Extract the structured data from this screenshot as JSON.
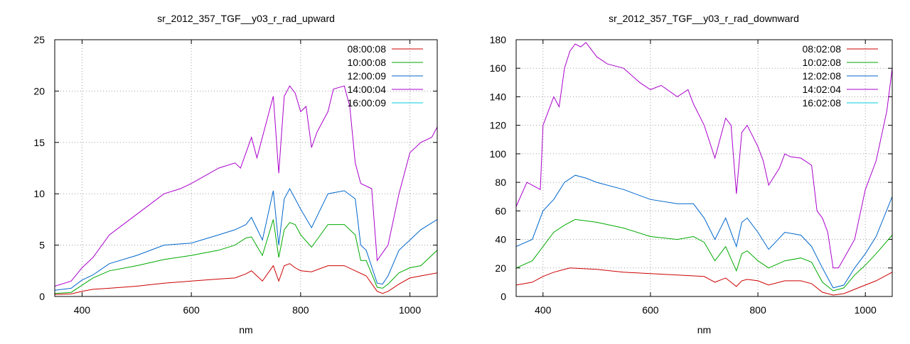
{
  "chart_data": [
    {
      "type": "line",
      "title": "sr_2012_357_TGF__y03_r_rad_upward",
      "xlabel": "nm",
      "ylabel": "",
      "xlim": [
        350,
        1050
      ],
      "ylim": [
        0,
        25
      ],
      "xticks": [
        400,
        600,
        800,
        1000
      ],
      "yticks": [
        0,
        5,
        10,
        15,
        20,
        25
      ],
      "grid": true,
      "legend_position": "top-right",
      "series": [
        {
          "name": "08:00:08",
          "color": "#cc0000",
          "x": [
            350,
            380,
            400,
            420,
            450,
            500,
            550,
            600,
            650,
            680,
            700,
            710,
            730,
            750,
            760,
            770,
            780,
            790,
            800,
            820,
            850,
            880,
            900,
            920,
            940,
            950,
            960,
            980,
            1000,
            1020,
            1050
          ],
          "y": [
            0.2,
            0.25,
            0.5,
            0.7,
            0.8,
            1.0,
            1.3,
            1.5,
            1.7,
            1.8,
            2.2,
            2.5,
            1.5,
            3.0,
            1.5,
            3.0,
            3.2,
            2.8,
            2.5,
            2.4,
            3.0,
            3.0,
            2.5,
            2.0,
            0.5,
            0.3,
            0.5,
            1.2,
            1.8,
            2.0,
            2.3
          ]
        },
        {
          "name": "10:00:08",
          "color": "#00aa00",
          "x": [
            350,
            380,
            400,
            420,
            450,
            500,
            550,
            600,
            650,
            680,
            700,
            710,
            730,
            750,
            760,
            770,
            780,
            790,
            800,
            820,
            850,
            880,
            900,
            910,
            920,
            940,
            950,
            960,
            980,
            1000,
            1020,
            1050
          ],
          "y": [
            0.3,
            0.4,
            1.1,
            1.8,
            2.5,
            3.0,
            3.6,
            4.0,
            4.5,
            5.0,
            5.7,
            5.8,
            4.0,
            7.5,
            3.8,
            6.5,
            7.2,
            7.0,
            6.0,
            4.8,
            7.0,
            7.0,
            6.0,
            3.5,
            3.5,
            0.9,
            0.8,
            1.2,
            2.3,
            2.8,
            3.0,
            4.5
          ]
        },
        {
          "name": "12:00:09",
          "color": "#0066cc",
          "x": [
            350,
            380,
            400,
            420,
            450,
            500,
            550,
            600,
            650,
            680,
            700,
            710,
            730,
            750,
            760,
            770,
            780,
            790,
            800,
            820,
            850,
            880,
            900,
            910,
            920,
            940,
            950,
            960,
            980,
            1000,
            1020,
            1050
          ],
          "y": [
            0.6,
            0.8,
            1.6,
            2.1,
            3.2,
            4.0,
            5.0,
            5.2,
            6.0,
            6.5,
            7.0,
            7.7,
            5.5,
            10.3,
            5.0,
            9.5,
            10.5,
            9.5,
            8.5,
            6.7,
            10.0,
            10.3,
            9.5,
            5.0,
            4.5,
            1.3,
            1.2,
            2.0,
            4.5,
            5.5,
            6.5,
            7.5
          ]
        },
        {
          "name": "14:00:04",
          "color": "#aa00cc",
          "x": [
            350,
            380,
            400,
            420,
            450,
            500,
            550,
            580,
            600,
            650,
            680,
            690,
            700,
            710,
            720,
            740,
            750,
            760,
            770,
            780,
            790,
            800,
            810,
            820,
            830,
            850,
            860,
            880,
            890,
            900,
            910,
            930,
            940,
            960,
            980,
            1000,
            1020,
            1040,
            1050
          ],
          "y": [
            1.0,
            1.5,
            2.8,
            3.8,
            6.0,
            8.0,
            10.0,
            10.5,
            11.0,
            12.5,
            13.0,
            12.5,
            14.0,
            15.5,
            13.5,
            17.5,
            19.5,
            12.0,
            19.5,
            20.5,
            19.8,
            18.0,
            18.5,
            14.5,
            16.0,
            18.0,
            20.2,
            20.5,
            18.5,
            13.0,
            11.0,
            10.5,
            3.5,
            5.0,
            10.0,
            14.0,
            15.0,
            15.5,
            16.5
          ]
        },
        {
          "name": "16:00:09",
          "color": "#00ccdd",
          "x": [
            350,
            1050
          ],
          "y": [
            0.0,
            0.0
          ]
        }
      ]
    },
    {
      "type": "line",
      "title": "sr_2012_357_TGF__y03_r_rad_downward",
      "xlabel": "nm",
      "ylabel": "",
      "xlim": [
        350,
        1050
      ],
      "ylim": [
        0,
        180
      ],
      "xticks": [
        400,
        600,
        800,
        1000
      ],
      "yticks": [
        0,
        20,
        40,
        60,
        80,
        100,
        120,
        140,
        160,
        180
      ],
      "grid": true,
      "legend_position": "top-right",
      "series": [
        {
          "name": "08:02:08",
          "color": "#cc0000",
          "x": [
            350,
            380,
            400,
            420,
            450,
            500,
            550,
            600,
            650,
            700,
            720,
            740,
            760,
            770,
            780,
            800,
            820,
            850,
            880,
            900,
            920,
            940,
            960,
            980,
            1000,
            1020,
            1050
          ],
          "y": [
            8,
            10,
            14,
            17,
            20,
            19,
            17,
            16,
            15,
            14,
            10,
            13,
            7,
            11,
            12,
            11,
            8,
            11,
            11,
            9,
            3,
            1,
            2,
            5,
            8,
            11,
            17
          ]
        },
        {
          "name": "10:02:08",
          "color": "#00aa00",
          "x": [
            350,
            380,
            400,
            420,
            440,
            460,
            500,
            550,
            600,
            650,
            680,
            700,
            720,
            740,
            760,
            770,
            780,
            800,
            820,
            850,
            880,
            900,
            920,
            940,
            960,
            980,
            1000,
            1020,
            1050
          ],
          "y": [
            20,
            25,
            35,
            45,
            50,
            54,
            52,
            48,
            42,
            40,
            42,
            38,
            25,
            35,
            18,
            30,
            32,
            25,
            20,
            25,
            27,
            24,
            10,
            4,
            6,
            15,
            22,
            30,
            43
          ]
        },
        {
          "name": "12:02:08",
          "color": "#0066cc",
          "x": [
            350,
            380,
            400,
            420,
            440,
            460,
            480,
            500,
            550,
            600,
            650,
            680,
            700,
            720,
            740,
            760,
            770,
            780,
            800,
            820,
            850,
            880,
            900,
            920,
            940,
            960,
            980,
            1000,
            1020,
            1050
          ],
          "y": [
            35,
            40,
            60,
            68,
            80,
            85,
            83,
            80,
            75,
            68,
            65,
            65,
            55,
            40,
            55,
            35,
            52,
            55,
            45,
            33,
            45,
            43,
            35,
            20,
            6,
            8,
            20,
            30,
            42,
            70
          ]
        },
        {
          "name": "14:02:04",
          "color": "#aa00cc",
          "x": [
            350,
            370,
            380,
            395,
            400,
            420,
            430,
            440,
            450,
            460,
            470,
            480,
            500,
            520,
            550,
            580,
            600,
            620,
            650,
            670,
            680,
            700,
            720,
            740,
            750,
            760,
            770,
            780,
            800,
            810,
            820,
            840,
            850,
            860,
            880,
            900,
            910,
            920,
            930,
            940,
            950,
            980,
            1000,
            1020,
            1040,
            1050
          ],
          "y": [
            63,
            80,
            78,
            75,
            120,
            140,
            133,
            160,
            172,
            177,
            175,
            178,
            168,
            163,
            160,
            150,
            145,
            148,
            140,
            145,
            135,
            120,
            97,
            125,
            120,
            72,
            115,
            120,
            105,
            95,
            78,
            90,
            100,
            98,
            97,
            92,
            60,
            55,
            45,
            20,
            20,
            40,
            75,
            95,
            130,
            160
          ]
        },
        {
          "name": "16:02:08",
          "color": "#00ccdd",
          "x": [
            350,
            1050
          ],
          "y": [
            0,
            0
          ]
        }
      ]
    }
  ]
}
